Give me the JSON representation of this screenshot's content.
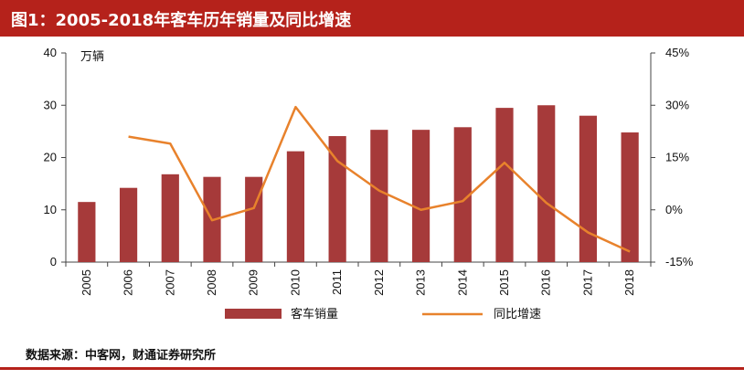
{
  "title": "图1：2005-2018年客车历年销量及同比增速",
  "source": "数据来源：中客网，财通证券研究所",
  "colors": {
    "accent": "#b5221b",
    "bar": "#a63a3a",
    "line": "#e8822c"
  },
  "chart_data": {
    "type": "bar",
    "title": "",
    "categories": [
      "2005",
      "2006",
      "2007",
      "2008",
      "2009",
      "2010",
      "2011",
      "2012",
      "2013",
      "2014",
      "2015",
      "2016",
      "2017",
      "2018"
    ],
    "series": [
      {
        "name": "客车销量",
        "type": "bar",
        "axis": "left",
        "values": [
          11.5,
          14.2,
          16.8,
          16.3,
          16.3,
          21.2,
          24.1,
          25.3,
          25.3,
          25.8,
          29.5,
          30.0,
          28.0,
          24.8
        ]
      },
      {
        "name": "同比增速",
        "type": "line",
        "axis": "right",
        "values": [
          null,
          21.0,
          19.0,
          -3.0,
          0.5,
          29.5,
          14.0,
          5.5,
          0.0,
          2.5,
          13.5,
          2.0,
          -6.5,
          -12.0
        ]
      }
    ],
    "ylabel": "万辆",
    "ylim": [
      0,
      40
    ],
    "yticks": [
      "0",
      "10",
      "20",
      "30",
      "40"
    ],
    "y2lim": [
      -15,
      45
    ],
    "y2ticks": [
      "-15%",
      "0%",
      "15%",
      "30%",
      "45%"
    ],
    "legend": "bottom",
    "grid": false
  }
}
